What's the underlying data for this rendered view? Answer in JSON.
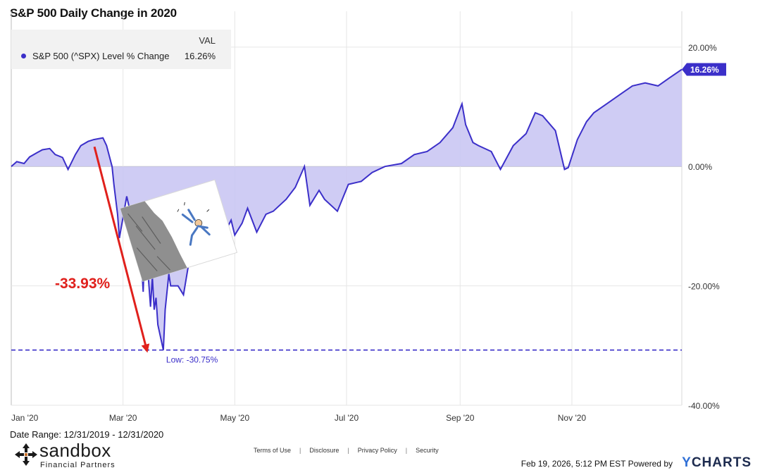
{
  "title": "S&P 500 Daily Change in 2020",
  "legend": {
    "header": "VAL",
    "series_name": "S&P 500 (^SPX) Level % Change",
    "value": "16.26%"
  },
  "annotations": {
    "drop_label": "-33.93%",
    "low_label": "Low: -30.75%",
    "end_value_tag": "16.26%"
  },
  "footer": {
    "date_range": "Date Range: 12/31/2019 - 12/31/2020",
    "links": [
      "Terms of Use",
      "Disclosure",
      "Privacy Policy",
      "Security"
    ],
    "timestamp": "Feb 19, 2026, 5:12 PM EST Powered by",
    "brand": "CHARTS",
    "brand_y": "Y"
  },
  "logo": {
    "name": "sandbox",
    "subtitle": "Financial Partners"
  },
  "colors": {
    "line": "#3b2fc9",
    "fill": "#c7c3f2",
    "arrow": "#e0201c",
    "low_line": "#3b2fc9",
    "tag_bg": "#3b2fc9"
  },
  "chart_data": {
    "type": "area",
    "title": "S&P 500 Daily Change in 2020",
    "xlabel": "",
    "ylabel": "",
    "ylim": [
      -40,
      26
    ],
    "yticks": [
      "20.00%",
      "0.00%",
      "-20.00%",
      "-40.00%"
    ],
    "ytick_values": [
      20,
      0,
      -20,
      -40
    ],
    "xticks": [
      "Jan '20",
      "Mar '20",
      "May '20",
      "Jul '20",
      "Sep '20",
      "Nov '20"
    ],
    "xtick_dates": [
      "2020-01-01",
      "2020-03-01",
      "2020-05-01",
      "2020-07-01",
      "2020-09-01",
      "2020-11-01"
    ],
    "grid": true,
    "series": [
      {
        "name": "S&P 500 (^SPX) Level % Change",
        "x": [
          "2019-12-31",
          "2020-01-03",
          "2020-01-07",
          "2020-01-10",
          "2020-01-14",
          "2020-01-17",
          "2020-01-21",
          "2020-01-24",
          "2020-01-28",
          "2020-01-31",
          "2020-02-04",
          "2020-02-07",
          "2020-02-11",
          "2020-02-14",
          "2020-02-19",
          "2020-02-21",
          "2020-02-24",
          "2020-02-25",
          "2020-02-27",
          "2020-02-28",
          "2020-03-03",
          "2020-03-06",
          "2020-03-09",
          "2020-03-10",
          "2020-03-12",
          "2020-03-13",
          "2020-03-16",
          "2020-03-17",
          "2020-03-18",
          "2020-03-19",
          "2020-03-20",
          "2020-03-23",
          "2020-03-24",
          "2020-03-26",
          "2020-03-27",
          "2020-03-31",
          "2020-04-03",
          "2020-04-06",
          "2020-04-08",
          "2020-04-13",
          "2020-04-17",
          "2020-04-21",
          "2020-04-24",
          "2020-04-29",
          "2020-05-01",
          "2020-05-05",
          "2020-05-08",
          "2020-05-13",
          "2020-05-18",
          "2020-05-22",
          "2020-05-29",
          "2020-06-03",
          "2020-06-08",
          "2020-06-11",
          "2020-06-16",
          "2020-06-19",
          "2020-06-26",
          "2020-07-02",
          "2020-07-09",
          "2020-07-15",
          "2020-07-22",
          "2020-07-31",
          "2020-08-07",
          "2020-08-14",
          "2020-08-21",
          "2020-08-28",
          "2020-09-02",
          "2020-09-04",
          "2020-09-08",
          "2020-09-11",
          "2020-09-18",
          "2020-09-23",
          "2020-09-30",
          "2020-10-07",
          "2020-10-12",
          "2020-10-16",
          "2020-10-23",
          "2020-10-28",
          "2020-10-30",
          "2020-11-04",
          "2020-11-09",
          "2020-11-13",
          "2020-11-20",
          "2020-11-27",
          "2020-12-04",
          "2020-12-11",
          "2020-12-18",
          "2020-12-24",
          "2020-12-31"
        ],
        "values": [
          0.0,
          0.8,
          0.5,
          1.6,
          2.3,
          2.8,
          3.0,
          2.0,
          1.5,
          -0.5,
          2.0,
          3.5,
          4.2,
          4.5,
          4.8,
          3.5,
          0.0,
          -3.0,
          -8.0,
          -12.0,
          -5.0,
          -9.0,
          -15.0,
          -10.5,
          -21.0,
          -11.0,
          -23.5,
          -18.5,
          -24.0,
          -22.0,
          -26.5,
          -30.75,
          -24.0,
          -18.0,
          -20.0,
          -20.0,
          -21.5,
          -16.0,
          -14.0,
          -14.5,
          -10.0,
          -13.0,
          -12.0,
          -9.0,
          -11.5,
          -9.5,
          -7.0,
          -11.0,
          -8.0,
          -7.5,
          -5.5,
          -3.5,
          0.0,
          -6.5,
          -4.0,
          -5.5,
          -7.5,
          -3.0,
          -2.5,
          -1.0,
          0.0,
          0.5,
          2.0,
          2.5,
          4.0,
          6.5,
          10.5,
          7.0,
          4.0,
          3.5,
          2.5,
          -0.5,
          3.5,
          5.5,
          9.0,
          8.5,
          6.0,
          -0.5,
          -0.2,
          4.5,
          7.5,
          9.0,
          10.5,
          12.0,
          13.5,
          14.0,
          13.5,
          14.8,
          16.26
        ]
      }
    ],
    "low_value": -30.75,
    "low_date": "2020-03-23",
    "drawdown_annotation": "-33.93%",
    "drawdown_from_date": "2020-02-19"
  }
}
